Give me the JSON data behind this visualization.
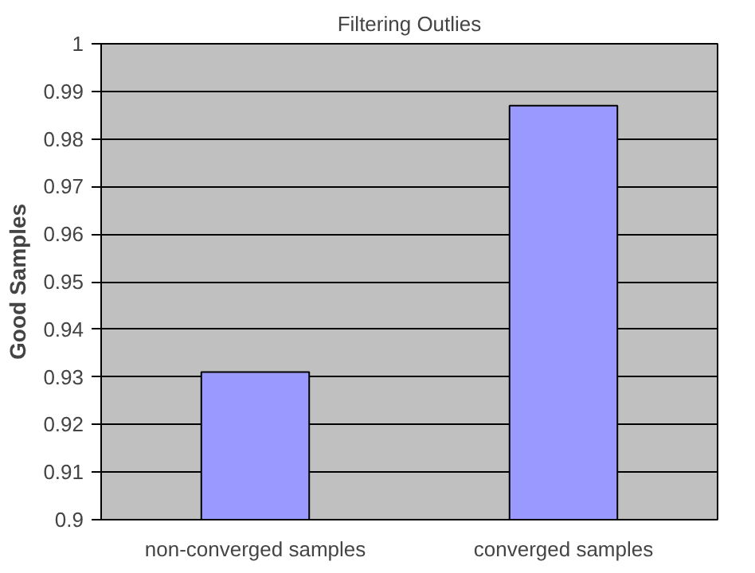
{
  "chart_data": {
    "type": "bar",
    "title": "Filtering Outlies",
    "ylabel": "Good Samples",
    "categories": [
      "non-converged samples",
      "converged samples"
    ],
    "values": [
      0.931,
      0.987
    ],
    "color": "#9999ff",
    "ylim": [
      0.9,
      1
    ],
    "yticks": [
      0.9,
      0.91,
      0.92,
      0.93,
      0.94,
      0.95,
      0.96,
      0.97,
      0.98,
      0.99,
      1
    ],
    "grid": "y"
  }
}
